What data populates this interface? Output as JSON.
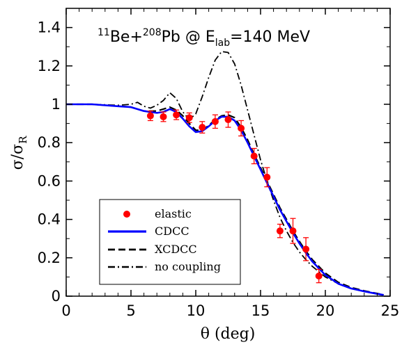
{
  "chart_data": {
    "type": "line",
    "title": {
      "a_sup": "11",
      "a": "Be+",
      "b_sup": "208",
      "b": "Pb @ E",
      "sub": "lab",
      "c": "=140 MeV"
    },
    "xlabel": "θ (deg)",
    "ylabel": {
      "main": "σ/σ",
      "sub": "R"
    },
    "xlim": [
      0,
      25
    ],
    "ylim": [
      0,
      1.5
    ],
    "xticks": [
      0,
      5,
      10,
      15,
      20,
      25
    ],
    "yticks": [
      0,
      0.2,
      0.4,
      0.6,
      0.8,
      1,
      1.2,
      1.4
    ],
    "xtick_labels": [
      "0",
      "5",
      "10",
      "15",
      "20",
      "25"
    ],
    "ytick_labels": [
      "0",
      "0.2",
      "0.4",
      "0.6",
      "0.8",
      "1",
      "1.2",
      "1.4"
    ],
    "grid": false,
    "legend_position": "bottom-left",
    "colors": {
      "elastic": "#ff0000",
      "cdcc": "#0000ff",
      "xcdcc": "#000000",
      "nocoupling": "#000000"
    },
    "legend": [
      {
        "key": "elastic",
        "label": "elastic"
      },
      {
        "key": "cdcc",
        "label": "CDCC"
      },
      {
        "key": "xcdcc",
        "label": "XCDCC"
      },
      {
        "key": "nocoupling",
        "label": "no coupling"
      }
    ],
    "points": [
      {
        "x": 6.5,
        "y": 0.94,
        "err": 0.025
      },
      {
        "x": 7.5,
        "y": 0.935,
        "err": 0.025
      },
      {
        "x": 8.5,
        "y": 0.945,
        "err": 0.025
      },
      {
        "x": 9.5,
        "y": 0.93,
        "err": 0.025
      },
      {
        "x": 10.5,
        "y": 0.88,
        "err": 0.03
      },
      {
        "x": 11.5,
        "y": 0.91,
        "err": 0.035
      },
      {
        "x": 12.5,
        "y": 0.92,
        "err": 0.04
      },
      {
        "x": 13.5,
        "y": 0.875,
        "err": 0.04
      },
      {
        "x": 14.5,
        "y": 0.73,
        "err": 0.04
      },
      {
        "x": 15.5,
        "y": 0.62,
        "err": 0.05
      },
      {
        "x": 16.5,
        "y": 0.34,
        "err": 0.035
      },
      {
        "x": 17.5,
        "y": 0.34,
        "err": 0.065
      },
      {
        "x": 18.5,
        "y": 0.245,
        "err": 0.06
      },
      {
        "x": 19.5,
        "y": 0.105,
        "err": 0.035
      }
    ],
    "series": [
      {
        "key": "cdcc",
        "x": [
          0,
          2,
          4,
          5,
          6,
          7,
          7.5,
          8,
          8.5,
          9,
          9.5,
          10,
          10.5,
          11,
          11.5,
          12,
          12.5,
          13,
          13.5,
          14,
          14.5,
          15,
          15.5,
          16,
          16.5,
          17,
          17.5,
          18,
          18.5,
          19,
          20,
          21,
          22,
          23,
          24,
          24.5
        ],
        "y": [
          1.0,
          1.0,
          0.99,
          0.985,
          0.965,
          0.955,
          0.96,
          0.975,
          0.96,
          0.925,
          0.885,
          0.855,
          0.86,
          0.885,
          0.915,
          0.935,
          0.935,
          0.915,
          0.865,
          0.8,
          0.73,
          0.66,
          0.59,
          0.52,
          0.45,
          0.39,
          0.33,
          0.275,
          0.225,
          0.18,
          0.11,
          0.065,
          0.04,
          0.025,
          0.012,
          0.006
        ]
      },
      {
        "key": "xcdcc",
        "x": [
          0,
          2,
          4,
          5,
          6,
          7,
          7.5,
          8,
          8.5,
          9,
          9.5,
          10,
          10.5,
          11,
          11.5,
          12,
          12.5,
          13,
          13.5,
          14,
          14.5,
          15,
          15.5,
          16,
          16.5,
          17,
          17.5,
          18,
          18.5,
          19,
          20,
          21,
          22,
          23,
          24,
          24.5
        ],
        "y": [
          1.0,
          1.0,
          0.99,
          0.985,
          0.965,
          0.965,
          0.975,
          0.985,
          0.97,
          0.94,
          0.9,
          0.865,
          0.865,
          0.89,
          0.92,
          0.94,
          0.945,
          0.93,
          0.88,
          0.815,
          0.74,
          0.67,
          0.6,
          0.53,
          0.46,
          0.4,
          0.34,
          0.285,
          0.235,
          0.19,
          0.12,
          0.072,
          0.045,
          0.028,
          0.014,
          0.007
        ]
      },
      {
        "key": "nocoupling",
        "x": [
          0,
          2,
          4,
          5,
          5.5,
          6,
          6.5,
          7,
          7.5,
          8,
          8.5,
          9,
          9.5,
          10,
          10.5,
          11,
          11.5,
          12,
          12.5,
          13,
          13.5,
          14,
          14.5,
          15,
          15.5,
          16,
          16.5,
          17,
          17.5,
          18,
          18.5,
          19,
          20,
          21,
          22,
          23,
          24,
          24.5
        ],
        "y": [
          1.0,
          1.0,
          0.995,
          1.0,
          1.01,
          0.99,
          0.98,
          0.995,
          1.02,
          1.06,
          1.03,
          0.96,
          0.92,
          0.95,
          1.04,
          1.14,
          1.23,
          1.275,
          1.27,
          1.21,
          1.1,
          0.97,
          0.84,
          0.71,
          0.6,
          0.5,
          0.41,
          0.34,
          0.28,
          0.23,
          0.19,
          0.155,
          0.1,
          0.065,
          0.04,
          0.025,
          0.012,
          0.006
        ]
      }
    ]
  }
}
